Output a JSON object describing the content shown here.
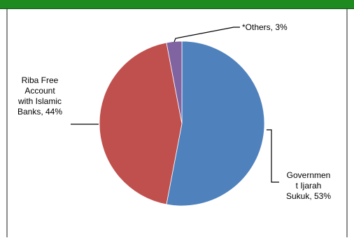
{
  "chart_data": {
    "type": "pie",
    "slices": [
      {
        "label_lines": [
          "Governmen",
          "t Ijarah",
          "Sukuk, 53%"
        ],
        "value": 53,
        "color": "#4f81bd"
      },
      {
        "label_lines": [
          "Riba Free",
          "Account",
          "with Islamic",
          "Banks, 44%"
        ],
        "value": 44,
        "color": "#c0504d"
      },
      {
        "label_lines": [
          "*Others, 3%"
        ],
        "value": 3,
        "color": "#8064a2"
      }
    ]
  }
}
